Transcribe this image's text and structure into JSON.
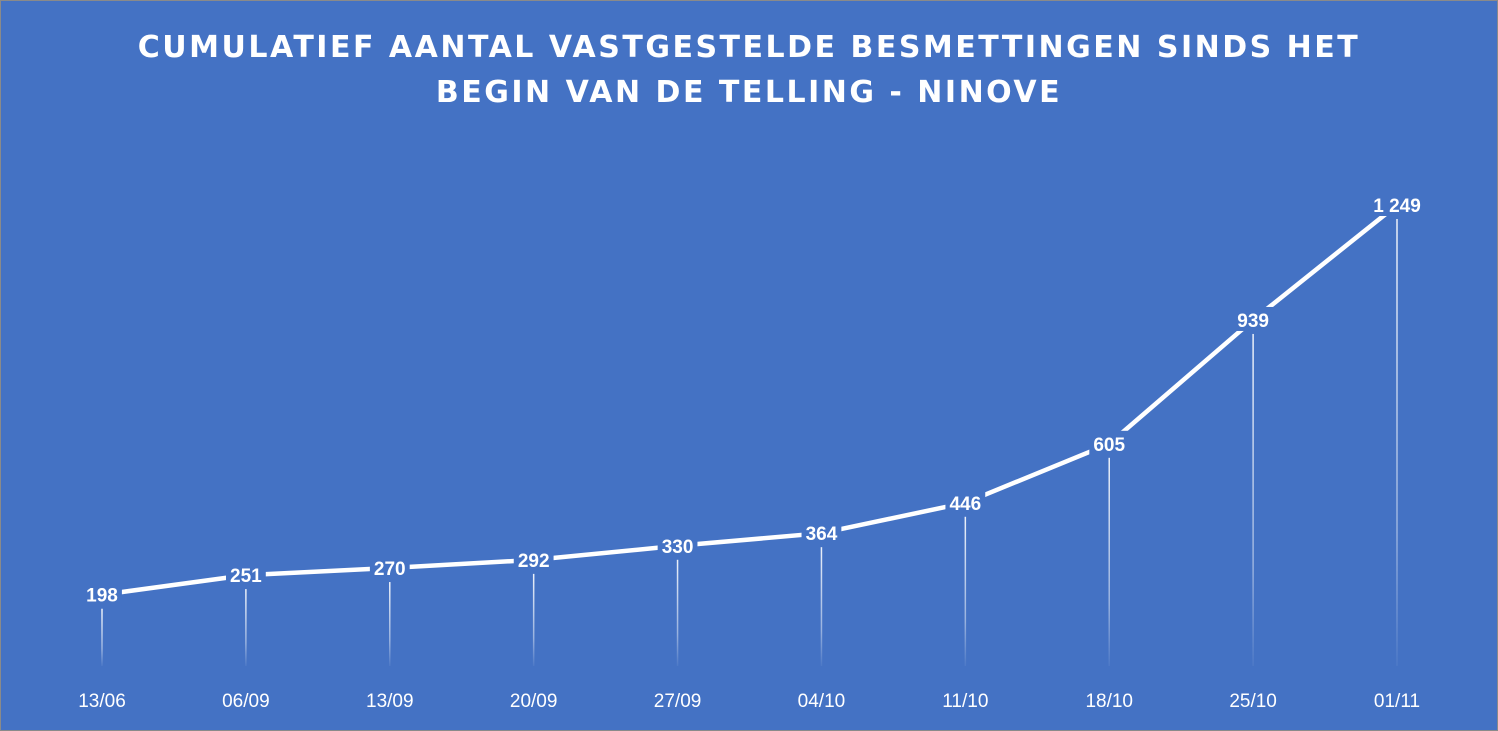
{
  "chart_data": {
    "type": "line",
    "title": "CUMULATIEF AANTAL VASTGESTELDE BESMETTINGEN SINDS HET\nBEGIN VAN DE TELLING - NINOVE",
    "categories": [
      "13/06",
      "06/09",
      "13/09",
      "20/09",
      "27/09",
      "04/10",
      "11/10",
      "18/10",
      "25/10",
      "01/11"
    ],
    "values": [
      198,
      251,
      270,
      292,
      330,
      364,
      446,
      605,
      939,
      1249
    ],
    "value_labels": [
      "198",
      "251",
      "270",
      "292",
      "330",
      "364",
      "446",
      "605",
      "939",
      "1 249"
    ],
    "xlabel": "",
    "ylabel": "",
    "grid": false,
    "legend": "none",
    "line_color": "#ffffff",
    "background_color": "#4472c4"
  }
}
